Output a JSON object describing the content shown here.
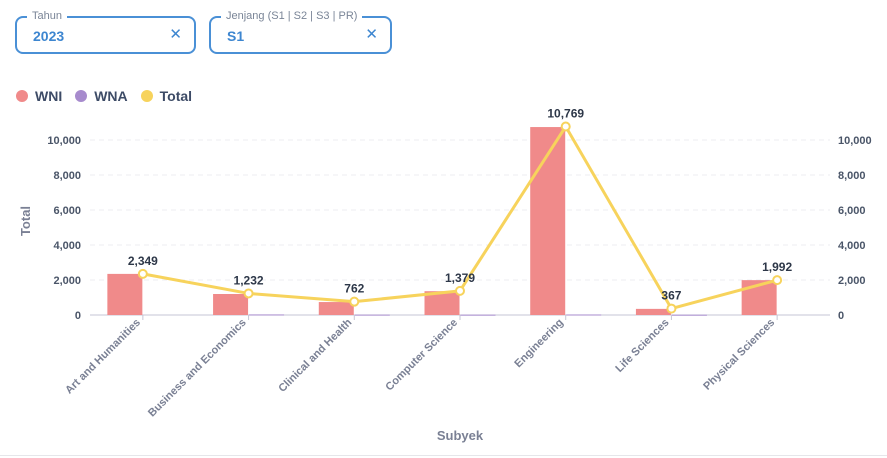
{
  "filters": {
    "year": {
      "label": "Tahun",
      "value": "2023",
      "clear": "✕"
    },
    "level": {
      "label": "Jenjang (S1 | S2 | S3 | PR)",
      "value": "S1",
      "clear": "✕"
    }
  },
  "legend": [
    {
      "label": "WNI",
      "color": "#f08a8a"
    },
    {
      "label": "WNA",
      "color": "#a78bcd"
    },
    {
      "label": "Total",
      "color": "#f7d35c"
    }
  ],
  "chart_data": {
    "type": "bar",
    "categories": [
      "Art and Humanities",
      "Business and Economics",
      "Clinical and Health",
      "Computer Science",
      "Engineering",
      "Life Sciences",
      "Physical Sciences"
    ],
    "series": [
      {
        "name": "WNI",
        "type": "bar",
        "color": "#f08a8a",
        "values": [
          2349,
          1200,
          740,
          1360,
          10740,
          350,
          1992
        ]
      },
      {
        "name": "WNA",
        "type": "bar",
        "color": "#a78bcd",
        "values": [
          0,
          32,
          22,
          19,
          29,
          17,
          0
        ]
      },
      {
        "name": "Total",
        "type": "line",
        "color": "#f7d35c",
        "values": [
          2349,
          1232,
          762,
          1379,
          10769,
          367,
          1992
        ]
      }
    ],
    "data_labels": [
      "2,349",
      "1,232",
      "762",
      "1,379",
      "10,769",
      "367",
      "1,992"
    ],
    "y_ticks": [
      "0",
      "2,000",
      "4,000",
      "6,000",
      "8,000",
      "10,000"
    ],
    "ylim": [
      0,
      11000
    ],
    "xlabel": "Subyek",
    "ylabel": "Total",
    "grid": true,
    "legend_position": "top-left"
  }
}
